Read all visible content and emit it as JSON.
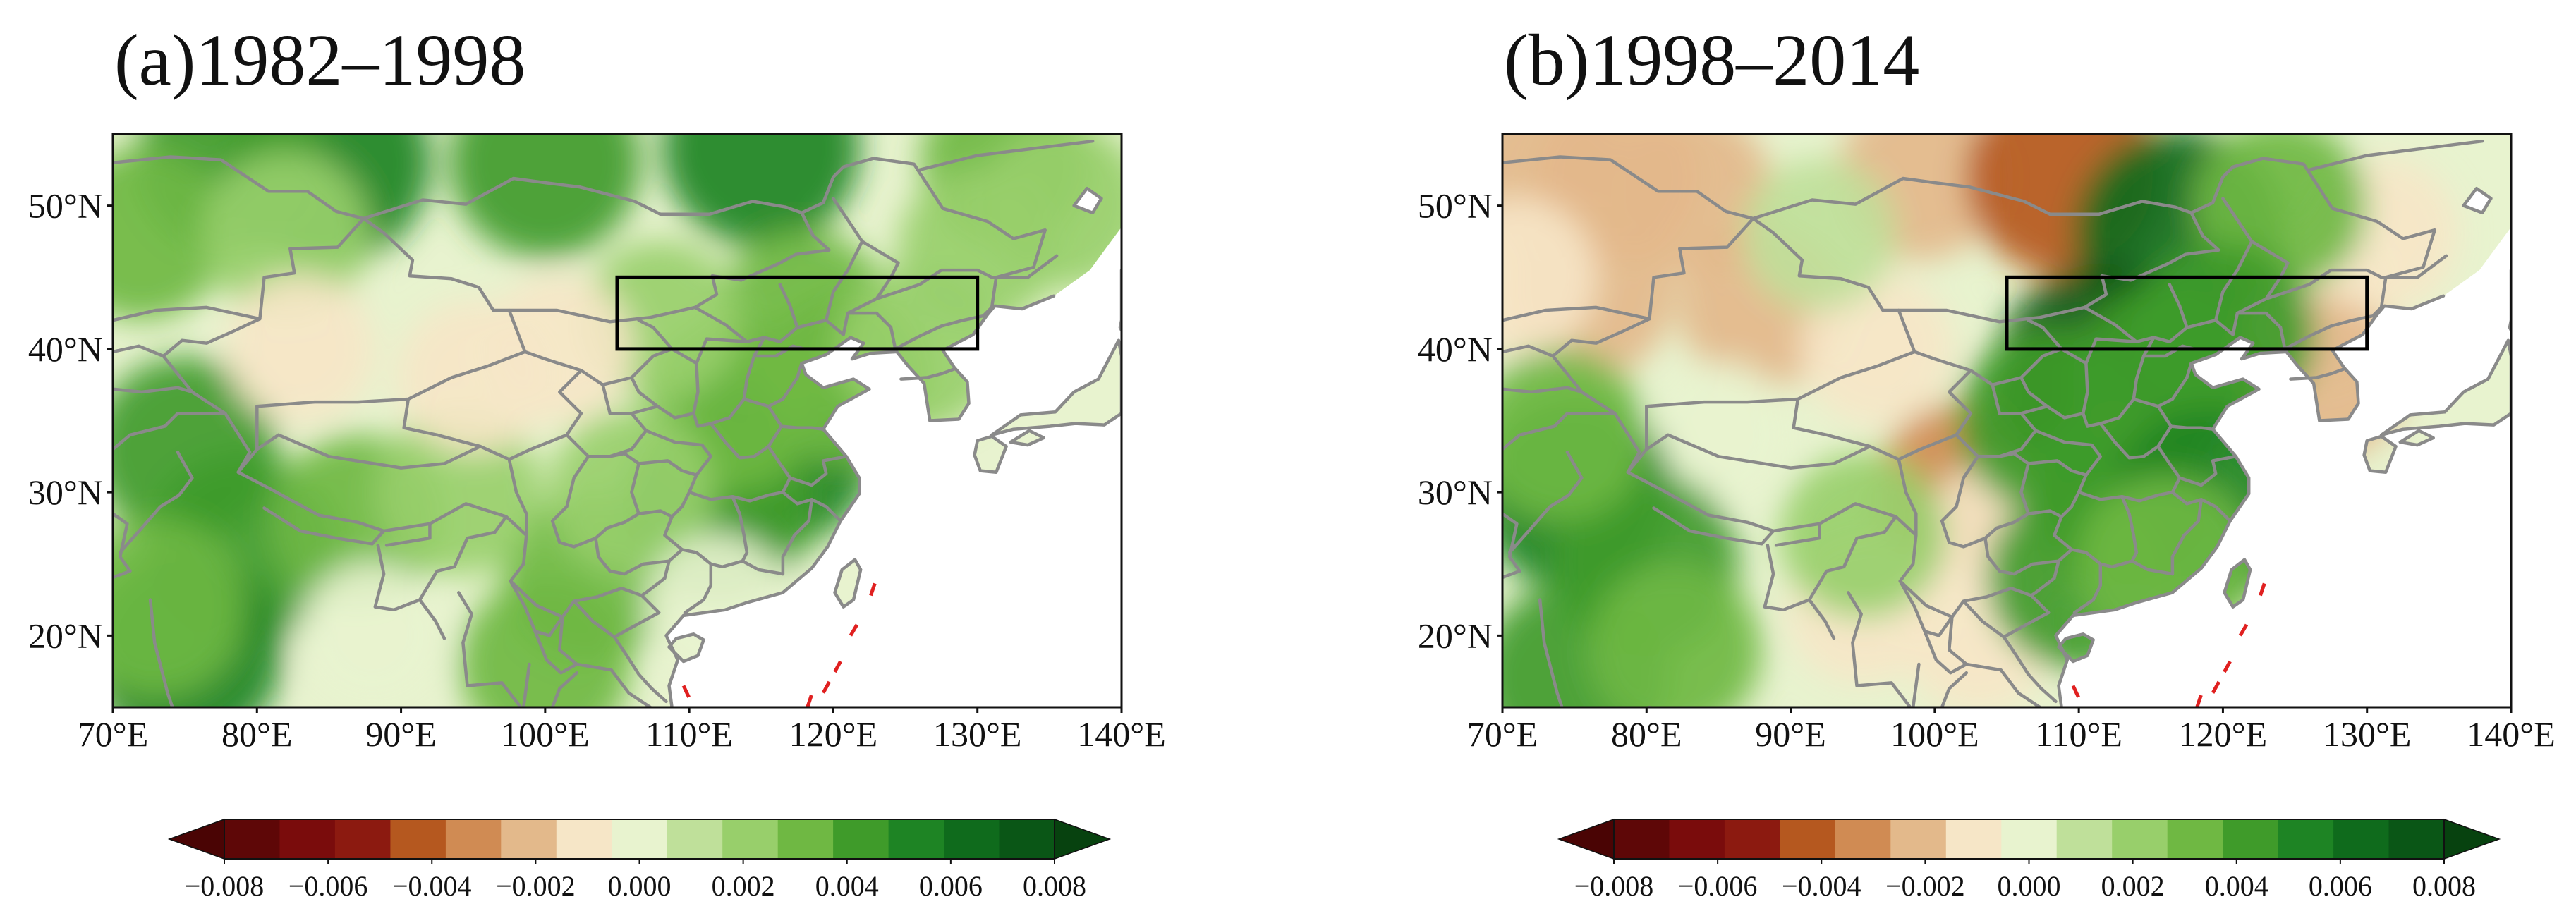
{
  "colors": [
    "#5e0707",
    "#7a0c0c",
    "#8c1a10",
    "#b5581f",
    "#d08b53",
    "#e3b98b",
    "#f6e6c7",
    "#e8f3cf",
    "#bfe09a",
    "#98cf6b",
    "#6fb843",
    "#3f9b2a",
    "#1e8424",
    "#0f6b1c",
    "#0a5616"
  ],
  "chart_data": {
    "type": "heatmap",
    "lon_range": [
      70,
      140
    ],
    "lat_range": [
      15,
      55
    ],
    "x_ticks": [
      "70°E",
      "80°E",
      "90°E",
      "100°E",
      "110°E",
      "120°E",
      "130°E",
      "140°E"
    ],
    "y_ticks": [
      "20°N",
      "30°N",
      "40°N",
      "50°N"
    ],
    "colorbar": {
      "ticks": [
        "−0.008",
        "−0.006",
        "−0.004",
        "−0.002",
        "0.000",
        "0.002",
        "0.004",
        "0.006",
        "0.008"
      ],
      "range": [
        -0.008,
        0.008
      ],
      "extend": "both"
    },
    "region_box": {
      "lon": [
        105,
        130
      ],
      "lat": [
        40,
        45
      ]
    },
    "panels": [
      {
        "title": "(a)1982–1998",
        "hotspots": [
          {
            "lon": 85,
            "lat": 53,
            "value": 0.0055
          },
          {
            "lon": 78,
            "lat": 53,
            "value": 0.004
          },
          {
            "lon": 100,
            "lat": 53,
            "value": 0.0045
          },
          {
            "lon": 115,
            "lat": 54,
            "value": 0.005
          },
          {
            "lon": 72,
            "lat": 48,
            "value": 0.003
          },
          {
            "lon": 82,
            "lat": 48,
            "value": 0.0025
          },
          {
            "lon": 75,
            "lat": 33,
            "value": 0.004
          },
          {
            "lon": 79,
            "lat": 26,
            "value": 0.0045
          },
          {
            "lon": 75,
            "lat": 19,
            "value": 0.005
          },
          {
            "lon": 73,
            "lat": 22,
            "value": 0.0035
          },
          {
            "lon": 87,
            "lat": 28,
            "value": 0.003
          },
          {
            "lon": 103,
            "lat": 24,
            "value": 0.003
          },
          {
            "lon": 100,
            "lat": 18,
            "value": 0.003
          },
          {
            "lon": 116,
            "lat": 33,
            "value": 0.005
          },
          {
            "lon": 112,
            "lat": 29,
            "value": 0.0045
          },
          {
            "lon": 113,
            "lat": 36,
            "value": 0.003
          },
          {
            "lon": 118,
            "lat": 42,
            "value": 0.0035
          },
          {
            "lon": 121,
            "lat": 38,
            "value": 0.003
          },
          {
            "lon": 126,
            "lat": 40,
            "value": 0.0025
          },
          {
            "lon": 108,
            "lat": 42,
            "value": 0.002
          },
          {
            "lon": 132,
            "lat": 53,
            "value": 0.003
          },
          {
            "lon": 136,
            "lat": 50,
            "value": 0.0025
          },
          {
            "lon": 130,
            "lat": 47,
            "value": 0.002
          },
          {
            "lon": 94,
            "lat": 30,
            "value": 0.0025
          },
          {
            "lon": 106,
            "lat": 30,
            "value": 0.0025
          },
          {
            "lon": 95,
            "lat": 38,
            "value": -0.0015
          },
          {
            "lon": 83,
            "lat": 40,
            "value": -0.0012
          },
          {
            "lon": 101,
            "lat": 40,
            "value": -0.0012
          },
          {
            "lon": 88,
            "lat": 20,
            "value": -0.001
          },
          {
            "lon": 112,
            "lat": 22,
            "value": -0.001
          }
        ]
      },
      {
        "title": "(b)1998–2014",
        "hotspots": [
          {
            "lon": 73,
            "lat": 52,
            "value": -0.003
          },
          {
            "lon": 78,
            "lat": 52,
            "value": -0.0025
          },
          {
            "lon": 83,
            "lat": 51,
            "value": -0.0025
          },
          {
            "lon": 99,
            "lat": 52,
            "value": -0.0025
          },
          {
            "lon": 109,
            "lat": 52,
            "value": -0.005
          },
          {
            "lon": 76,
            "lat": 44,
            "value": -0.003
          },
          {
            "lon": 71,
            "lat": 45,
            "value": -0.002
          },
          {
            "lon": 88,
            "lat": 43,
            "value": -0.0025
          },
          {
            "lon": 96,
            "lat": 40,
            "value": -0.0015
          },
          {
            "lon": 102,
            "lat": 30,
            "value": -0.0035
          },
          {
            "lon": 105,
            "lat": 27,
            "value": -0.002
          },
          {
            "lon": 103,
            "lat": 20,
            "value": -0.0015
          },
          {
            "lon": 95,
            "lat": 22,
            "value": -0.0015
          },
          {
            "lon": 126,
            "lat": 43,
            "value": -0.002
          },
          {
            "lon": 127,
            "lat": 38,
            "value": -0.0025
          },
          {
            "lon": 131,
            "lat": 48,
            "value": -0.0015
          },
          {
            "lon": 85,
            "lat": 34,
            "value": -0.001
          },
          {
            "lon": 117,
            "lat": 48,
            "value": 0.006
          },
          {
            "lon": 124,
            "lat": 50,
            "value": 0.003
          },
          {
            "lon": 112,
            "lat": 38,
            "value": 0.0075
          },
          {
            "lon": 108,
            "lat": 35,
            "value": 0.004
          },
          {
            "lon": 116,
            "lat": 38,
            "value": 0.004
          },
          {
            "lon": 120,
            "lat": 41,
            "value": 0.004
          },
          {
            "lon": 113,
            "lat": 30,
            "value": 0.004
          },
          {
            "lon": 119,
            "lat": 29,
            "value": 0.005
          },
          {
            "lon": 110,
            "lat": 24,
            "value": 0.004
          },
          {
            "lon": 116,
            "lat": 25,
            "value": 0.0035
          },
          {
            "lon": 75,
            "lat": 30,
            "value": 0.005
          },
          {
            "lon": 80,
            "lat": 25,
            "value": 0.004
          },
          {
            "lon": 75,
            "lat": 17,
            "value": 0.0045
          },
          {
            "lon": 82,
            "lat": 19,
            "value": 0.003
          },
          {
            "lon": 74,
            "lat": 34,
            "value": 0.003
          },
          {
            "lon": 95,
            "lat": 27,
            "value": 0.0025
          },
          {
            "lon": 92,
            "lat": 48,
            "value": 0.0015
          }
        ]
      }
    ]
  }
}
